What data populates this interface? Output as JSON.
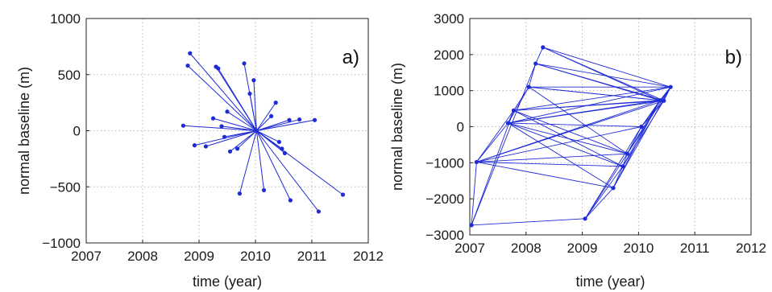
{
  "chart_data": [
    {
      "type": "scatter",
      "panel_label": "a)",
      "xlabel": "time (year)",
      "ylabel": "normal baseline (m)",
      "xlim": [
        2007,
        2012
      ],
      "ylim": [
        -1000,
        1000
      ],
      "xticks": [
        "2007",
        "2008",
        "2009",
        "2010",
        "2011",
        "2012"
      ],
      "yticks": [
        "1000",
        "500",
        "0",
        "−500",
        "−1000"
      ],
      "grid": true,
      "series_color": "#1f2bd6",
      "master": {
        "x": 2010.02,
        "y": 0
      },
      "points": [
        {
          "x": 2008.72,
          "y": 45
        },
        {
          "x": 2008.8,
          "y": 580
        },
        {
          "x": 2008.84,
          "y": 690
        },
        {
          "x": 2008.92,
          "y": -130
        },
        {
          "x": 2009.12,
          "y": -140
        },
        {
          "x": 2009.25,
          "y": 110
        },
        {
          "x": 2009.3,
          "y": 570
        },
        {
          "x": 2009.34,
          "y": 555
        },
        {
          "x": 2009.4,
          "y": 40
        },
        {
          "x": 2009.45,
          "y": -55
        },
        {
          "x": 2009.5,
          "y": 170
        },
        {
          "x": 2009.55,
          "y": -185
        },
        {
          "x": 2009.68,
          "y": -160
        },
        {
          "x": 2009.72,
          "y": -560
        },
        {
          "x": 2009.8,
          "y": 600
        },
        {
          "x": 2009.9,
          "y": 330
        },
        {
          "x": 2009.97,
          "y": 450
        },
        {
          "x": 2010.15,
          "y": -530
        },
        {
          "x": 2010.28,
          "y": 130
        },
        {
          "x": 2010.36,
          "y": 250
        },
        {
          "x": 2010.42,
          "y": -100
        },
        {
          "x": 2010.47,
          "y": -160
        },
        {
          "x": 2010.52,
          "y": -200
        },
        {
          "x": 2010.6,
          "y": 95
        },
        {
          "x": 2010.62,
          "y": -620
        },
        {
          "x": 2010.78,
          "y": 100
        },
        {
          "x": 2011.05,
          "y": 95
        },
        {
          "x": 2011.12,
          "y": -720
        },
        {
          "x": 2011.55,
          "y": -570
        }
      ]
    },
    {
      "type": "line",
      "panel_label": "b)",
      "xlabel": "time (year)",
      "ylabel": "normal baseline (m)",
      "xlim": [
        2007,
        2012
      ],
      "ylim": [
        -3000,
        3000
      ],
      "xticks": [
        "2007",
        "2008",
        "2009",
        "2010",
        "2011",
        "2012"
      ],
      "yticks": [
        "3000",
        "2000",
        "1000",
        "0",
        "−1000",
        "−2000",
        "−3000"
      ],
      "grid": true,
      "series_color": "#1f2bd6",
      "points": [
        {
          "x": 2007.03,
          "y": -2730
        },
        {
          "x": 2007.12,
          "y": -980
        },
        {
          "x": 2007.68,
          "y": 100
        },
        {
          "x": 2007.78,
          "y": 450
        },
        {
          "x": 2008.05,
          "y": 1100
        },
        {
          "x": 2008.17,
          "y": 1750
        },
        {
          "x": 2008.3,
          "y": 2200
        },
        {
          "x": 2009.05,
          "y": -2550
        },
        {
          "x": 2009.55,
          "y": -1700
        },
        {
          "x": 2009.72,
          "y": -1100
        },
        {
          "x": 2009.8,
          "y": -750
        },
        {
          "x": 2010.05,
          "y": 0
        },
        {
          "x": 2010.38,
          "y": 730
        },
        {
          "x": 2010.45,
          "y": 720
        },
        {
          "x": 2010.57,
          "y": 1100
        }
      ],
      "edges": [
        [
          0,
          1
        ],
        [
          0,
          3
        ],
        [
          0,
          5
        ],
        [
          0,
          7
        ],
        [
          1,
          2
        ],
        [
          1,
          3
        ],
        [
          1,
          8
        ],
        [
          1,
          9
        ],
        [
          1,
          10
        ],
        [
          1,
          11
        ],
        [
          1,
          12
        ],
        [
          1,
          13
        ],
        [
          2,
          3
        ],
        [
          2,
          4
        ],
        [
          2,
          8
        ],
        [
          2,
          9
        ],
        [
          2,
          10
        ],
        [
          2,
          11
        ],
        [
          2,
          12
        ],
        [
          2,
          13
        ],
        [
          2,
          14
        ],
        [
          3,
          4
        ],
        [
          3,
          9
        ],
        [
          3,
          10
        ],
        [
          3,
          12
        ],
        [
          3,
          13
        ],
        [
          3,
          14
        ],
        [
          4,
          5
        ],
        [
          4,
          10
        ],
        [
          4,
          12
        ],
        [
          4,
          13
        ],
        [
          4,
          14
        ],
        [
          5,
          6
        ],
        [
          5,
          12
        ],
        [
          5,
          13
        ],
        [
          5,
          14
        ],
        [
          6,
          12
        ],
        [
          6,
          13
        ],
        [
          6,
          14
        ],
        [
          7,
          8
        ],
        [
          7,
          9
        ],
        [
          7,
          10
        ],
        [
          7,
          11
        ],
        [
          8,
          9
        ],
        [
          8,
          12
        ],
        [
          8,
          14
        ],
        [
          9,
          10
        ],
        [
          9,
          12
        ],
        [
          9,
          13
        ],
        [
          10,
          11
        ],
        [
          10,
          12
        ],
        [
          10,
          14
        ],
        [
          11,
          12
        ],
        [
          11,
          13
        ],
        [
          11,
          14
        ],
        [
          12,
          13
        ],
        [
          12,
          14
        ],
        [
          13,
          14
        ]
      ]
    }
  ]
}
